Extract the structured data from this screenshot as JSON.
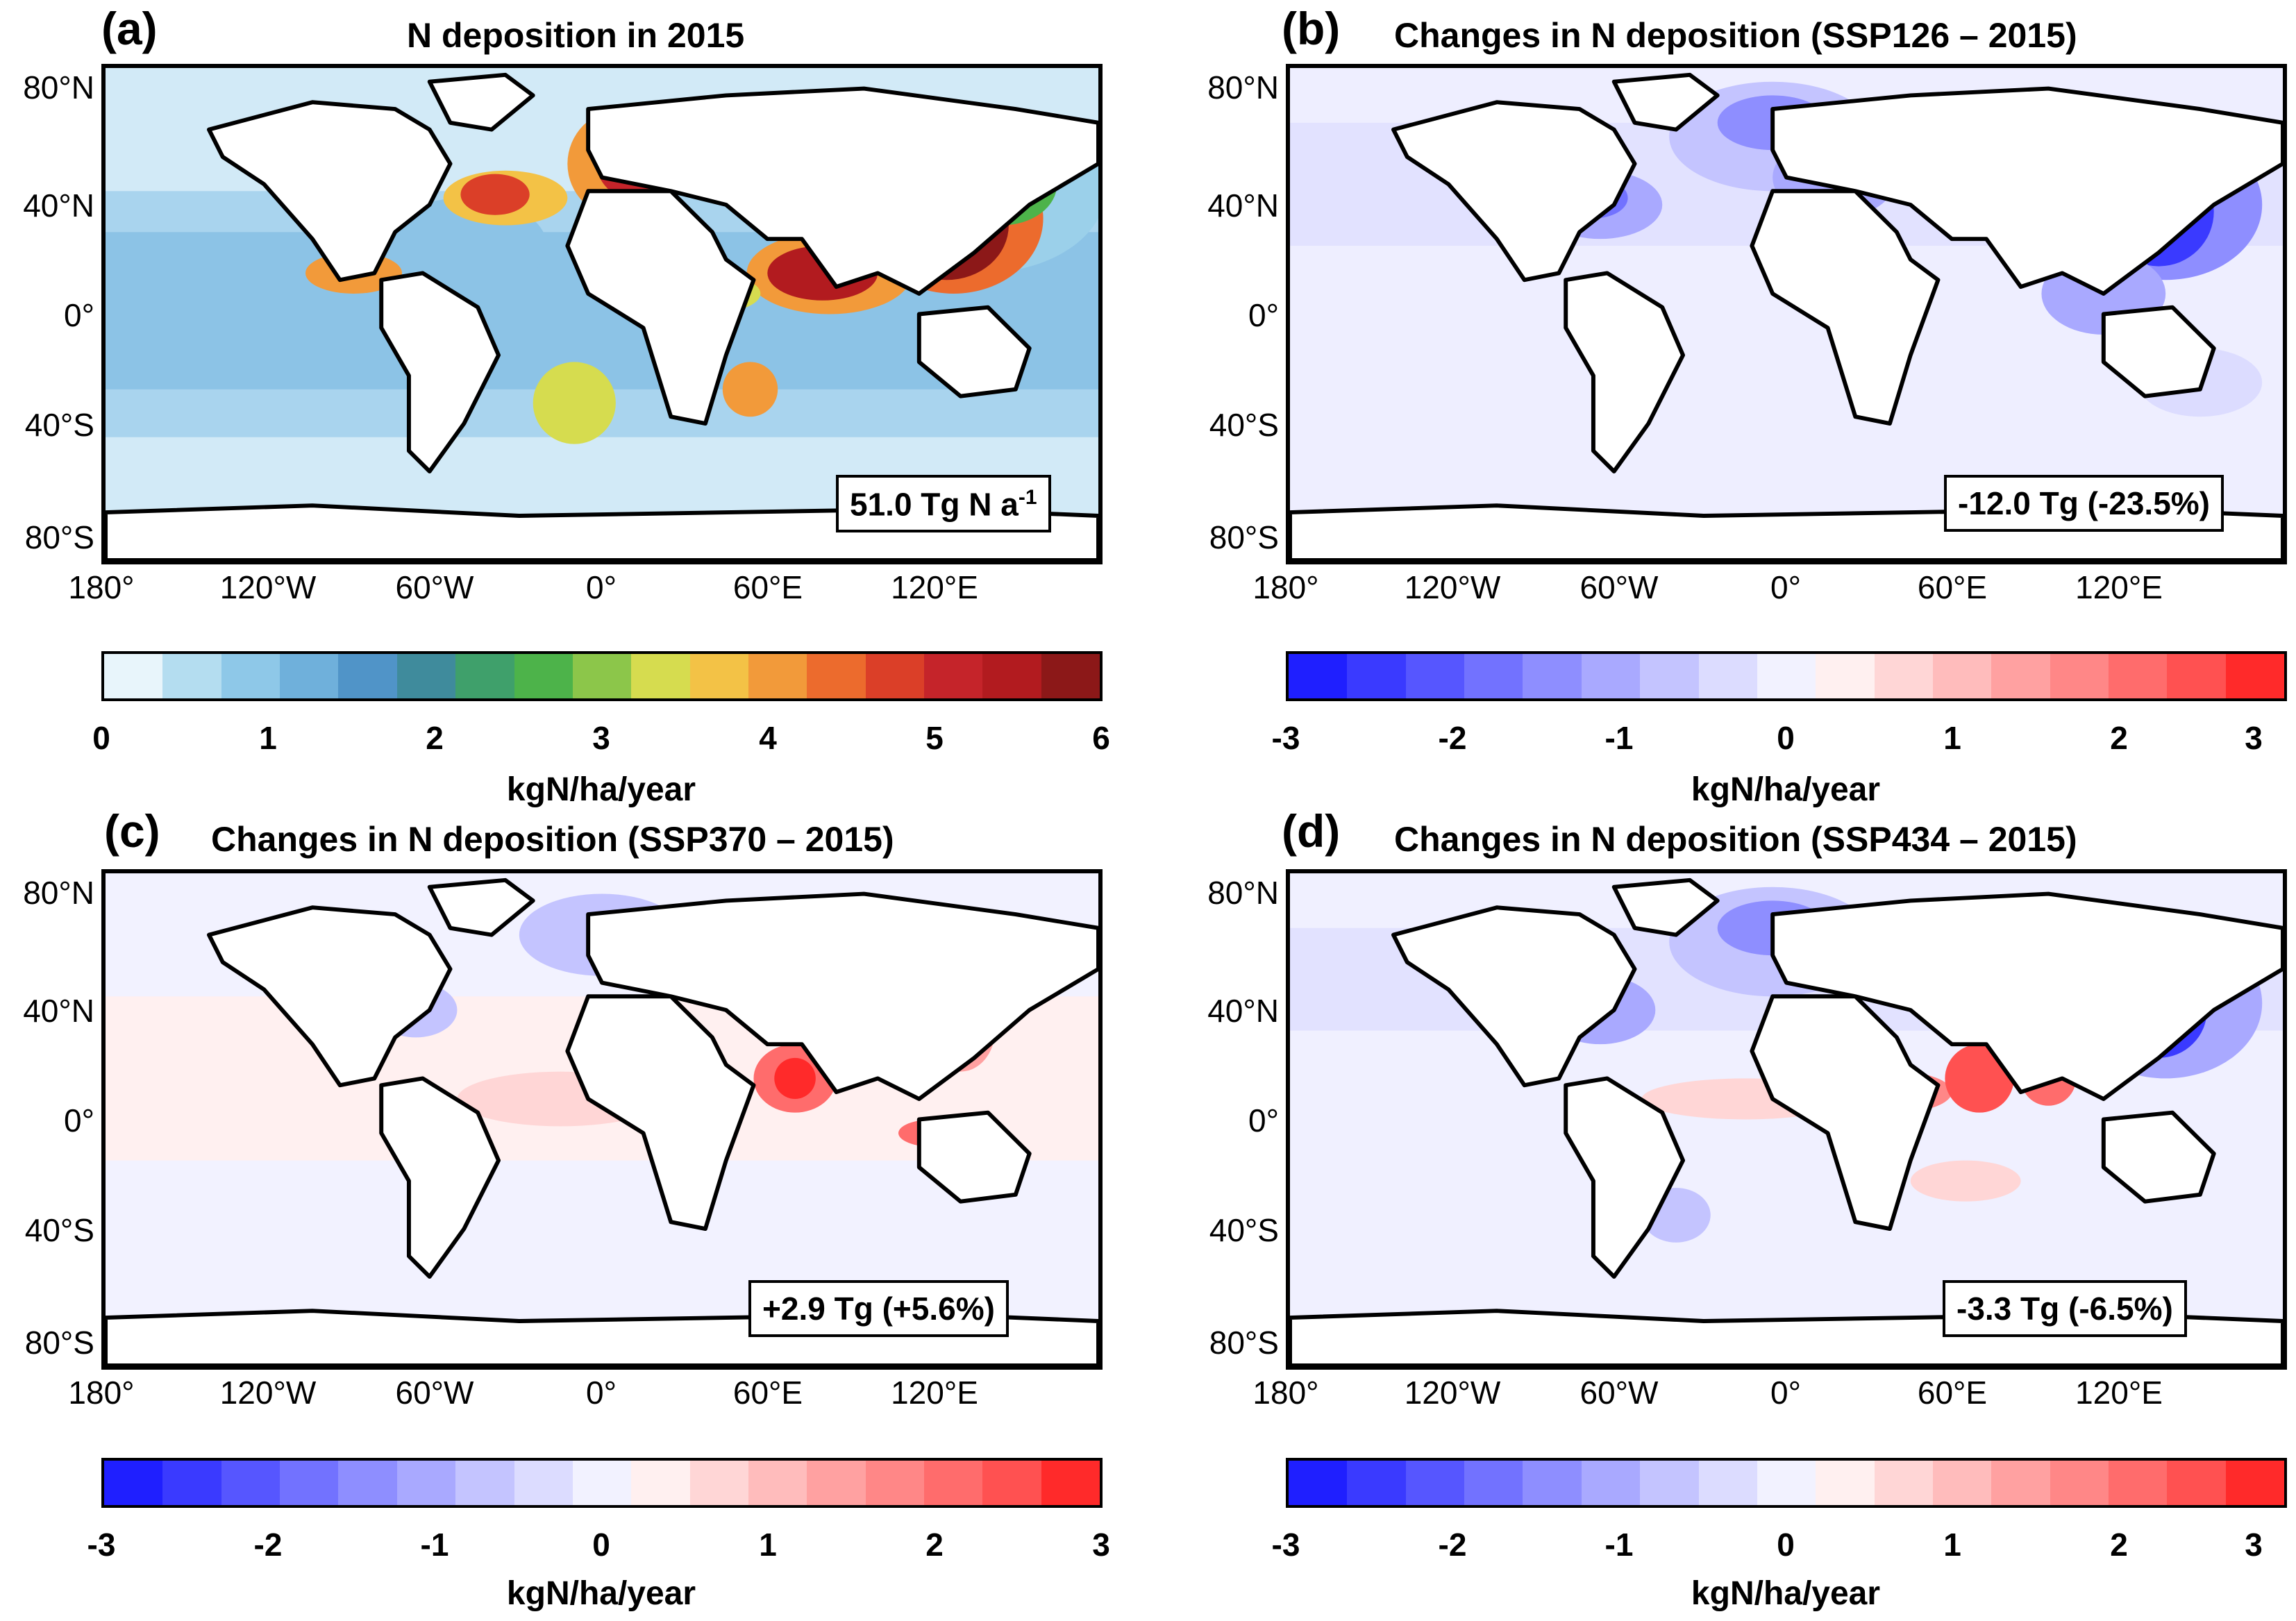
{
  "panels": [
    {
      "letter": "(a)",
      "title": "N deposition in 2015",
      "total_main": "51.0 Tg N a",
      "total_sup": "-1",
      "colorbar_label": "kgN/ha/year",
      "colorbar_ticks": [
        "0",
        "1",
        "2",
        "3",
        "4",
        "5",
        "6"
      ],
      "colorbar_colors": [
        "#e8f5fb",
        "#b4ddf0",
        "#8ec8e8",
        "#6fb0db",
        "#5094c8",
        "#3f8b9c",
        "#3fa06b",
        "#4db34a",
        "#8cc64a",
        "#d6dc4f",
        "#f3c246",
        "#f29a3a",
        "#ec6b2d",
        "#db3f28",
        "#c5242a",
        "#b21b1f",
        "#8c1818"
      ]
    },
    {
      "letter": "(b)",
      "title": "Changes in N deposition (SSP126 – 2015)",
      "total_main": "-12.0 Tg (-23.5%)",
      "total_sup": "",
      "colorbar_label": "kgN/ha/year",
      "colorbar_ticks": [
        "-3",
        "-2",
        "-1",
        "0",
        "1",
        "2",
        "3"
      ],
      "colorbar_colors": [
        "#1f1fff",
        "#3a3aff",
        "#5656ff",
        "#7272ff",
        "#8e8eff",
        "#a9a9ff",
        "#c4c4ff",
        "#dcdcff",
        "#f2f2ff",
        "#fff0f0",
        "#ffd6d6",
        "#ffbcbc",
        "#ffa1a1",
        "#ff8787",
        "#ff6c6c",
        "#ff5151",
        "#ff2a2a"
      ]
    },
    {
      "letter": "(c)",
      "title": "Changes in N deposition (SSP370 – 2015)",
      "total_main": "+2.9 Tg (+5.6%)",
      "total_sup": "",
      "colorbar_label": "kgN/ha/year",
      "colorbar_ticks": [
        "-3",
        "-2",
        "-1",
        "0",
        "1",
        "2",
        "3"
      ],
      "colorbar_colors": [
        "#1f1fff",
        "#3a3aff",
        "#5656ff",
        "#7272ff",
        "#8e8eff",
        "#a9a9ff",
        "#c4c4ff",
        "#dcdcff",
        "#f2f2ff",
        "#fff0f0",
        "#ffd6d6",
        "#ffbcbc",
        "#ffa1a1",
        "#ff8787",
        "#ff6c6c",
        "#ff5151",
        "#ff2a2a"
      ]
    },
    {
      "letter": "(d)",
      "title": "Changes in N deposition (SSP434 – 2015)",
      "total_main": "-3.3 Tg (-6.5%)",
      "total_sup": "",
      "colorbar_label": "kgN/ha/year",
      "colorbar_ticks": [
        "-3",
        "-2",
        "-1",
        "0",
        "1",
        "2",
        "3"
      ],
      "colorbar_colors": [
        "#1f1fff",
        "#3a3aff",
        "#5656ff",
        "#7272ff",
        "#8e8eff",
        "#a9a9ff",
        "#c4c4ff",
        "#dcdcff",
        "#f2f2ff",
        "#fff0f0",
        "#ffd6d6",
        "#ffbcbc",
        "#ffa1a1",
        "#ff8787",
        "#ff6c6c",
        "#ff5151",
        "#ff2a2a"
      ]
    }
  ],
  "lat_ticks": [
    "80°N",
    "40°N",
    "0°",
    "40°S",
    "80°S"
  ],
  "lon_ticks": [
    "180°",
    "120°W",
    "60°W",
    "0°",
    "60°E",
    "120°E"
  ]
}
